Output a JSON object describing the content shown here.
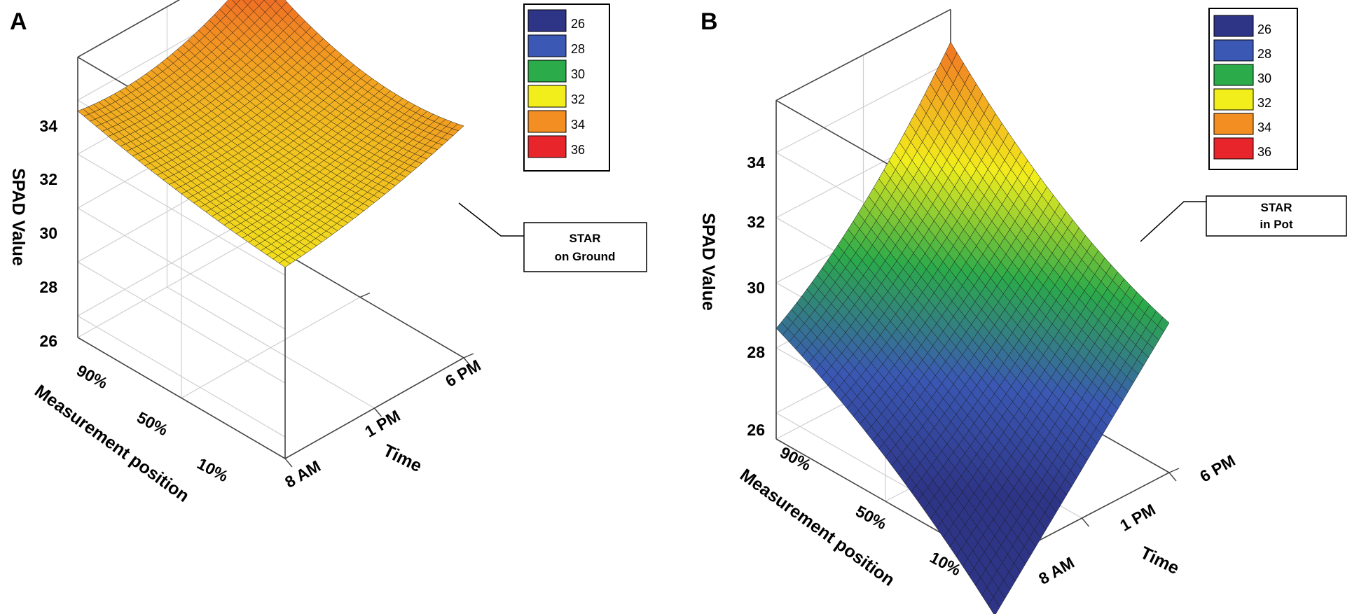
{
  "chart_data": [
    {
      "type": "surface3d",
      "panel_label": "A",
      "title": "",
      "xlabel": "Time",
      "ylabel": "Measurement position",
      "zlabel": "SPAD Value",
      "x_ticks": [
        "8 AM",
        "1 PM",
        "6 PM"
      ],
      "y_ticks": [
        "10%",
        "50%",
        "90%"
      ],
      "z_ticks": [
        26,
        28,
        30,
        32,
        34
      ],
      "zlim": [
        25.2,
        35.6
      ],
      "annotation": [
        "STAR",
        "on Ground"
      ],
      "legend": {
        "levels": [
          26,
          28,
          30,
          32,
          34,
          36
        ],
        "colors": [
          "#2e3587",
          "#3a58b4",
          "#2bab4a",
          "#f2ee1c",
          "#f28e22",
          "#e8252a"
        ]
      },
      "surface": {
        "x": [
          "8 AM",
          "1 PM",
          "6 PM"
        ],
        "y": [
          "10%",
          "50%",
          "90%"
        ],
        "z": [
          [
            32.3,
            32.6,
            33.8
          ],
          [
            32.6,
            32.4,
            32.8
          ],
          [
            33.6,
            33.0,
            35.2
          ]
        ]
      }
    },
    {
      "type": "surface3d",
      "panel_label": "B",
      "title": "",
      "xlabel": "Time",
      "ylabel": "Measurement position",
      "zlabel": "SPAD Value",
      "x_ticks": [
        "8 AM",
        "1 PM",
        "6 PM"
      ],
      "y_ticks": [
        "10%",
        "50%",
        "90%"
      ],
      "z_ticks": [
        26,
        28,
        30,
        32,
        34
      ],
      "zlim": [
        25.2,
        35.6
      ],
      "annotation": [
        "STAR",
        "in Pot"
      ],
      "legend": {
        "levels": [
          26,
          28,
          30,
          32,
          34,
          36
        ],
        "colors": [
          "#2e3587",
          "#3a58b4",
          "#2bab4a",
          "#f2ee1c",
          "#f28e22",
          "#e8252a"
        ]
      },
      "surface": {
        "x": [
          "8 AM",
          "1 PM",
          "6 PM"
        ],
        "y": [
          "10%",
          "50%",
          "90%"
        ],
        "z": [
          [
            23.6,
            26.7,
            29.8
          ],
          [
            27.0,
            28.4,
            30.9
          ],
          [
            28.6,
            30.4,
            34.6
          ]
        ]
      }
    }
  ]
}
